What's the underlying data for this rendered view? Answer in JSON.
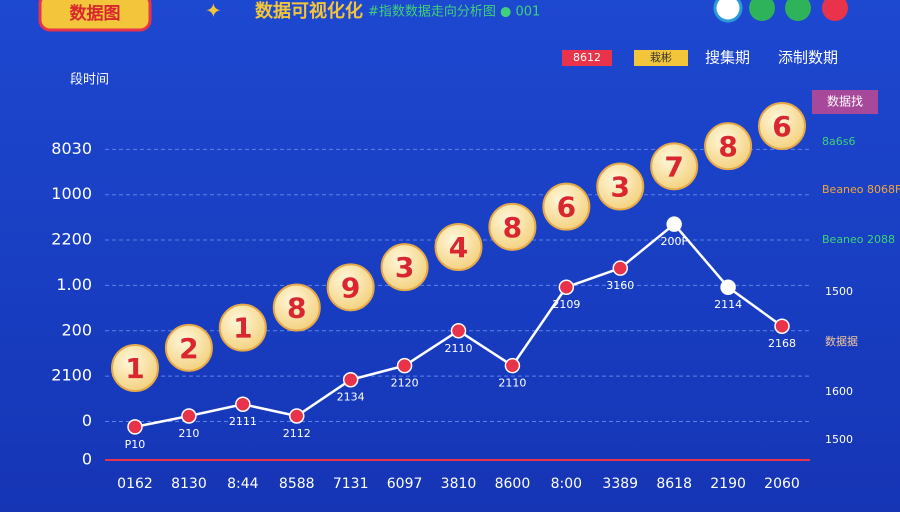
{
  "header": {
    "badge": "数据图",
    "title": "数据可视化化",
    "subtitle": "#指数数据走向分析图 ● 001"
  },
  "legend": [
    "8612",
    "栽彬",
    "搜集期",
    "添制数期"
  ],
  "side_labels": [
    "数据找",
    "8a6s6",
    "Beaneo 8068F",
    "Beaneo 2088",
    "1500",
    "数据据",
    "1600",
    "1500"
  ],
  "chart_data": {
    "type": "line",
    "ylabel": "段时间",
    "categories": [
      "0162",
      "8130",
      "8:44",
      "8588",
      "7131",
      "6097",
      "3810",
      "8600",
      "8:00",
      "3389",
      "8618",
      "2190",
      "2060"
    ],
    "series": [
      {
        "name": "数据",
        "color": "#ffffff",
        "values": [
          -0.12,
          0.12,
          0.38,
          0.12,
          0.92,
          1.23,
          2.0,
          1.23,
          2.96,
          3.38,
          4.35,
          2.96,
          2.1
        ],
        "value_labels": [
          "P10",
          "210",
          "2111",
          "2112",
          "2134",
          "2120",
          "2110",
          "2110",
          "2109",
          "3160",
          "200F",
          "2114",
          "2168"
        ],
        "marker_colors": [
          "#e8334a",
          "#e8334a",
          "#e8334a",
          "#e8334a",
          "#e8334a",
          "#e8334a",
          "#e8334a",
          "#e8334a",
          "#e8334a",
          "#e8334a",
          "#ffffff",
          "#ffffff",
          "#e8334a"
        ]
      }
    ],
    "badges": [
      "1",
      "2",
      "1",
      "8",
      "9",
      "3",
      "4",
      "8",
      "6",
      "3",
      "7",
      "8",
      "6"
    ],
    "ylim": [
      -0.85,
      7
    ],
    "yticks": [
      {
        "value": -0.85,
        "label": "0"
      },
      0,
      {
        "value": 1,
        "label": "2100"
      },
      {
        "value": 2,
        "label": "200"
      },
      {
        "value": 3,
        "label": "1.00"
      },
      {
        "value": 4,
        "label": "2200"
      },
      {
        "value": 5,
        "label": "1000"
      },
      {
        "value": 6,
        "label": "8030"
      }
    ],
    "grid": true
  }
}
